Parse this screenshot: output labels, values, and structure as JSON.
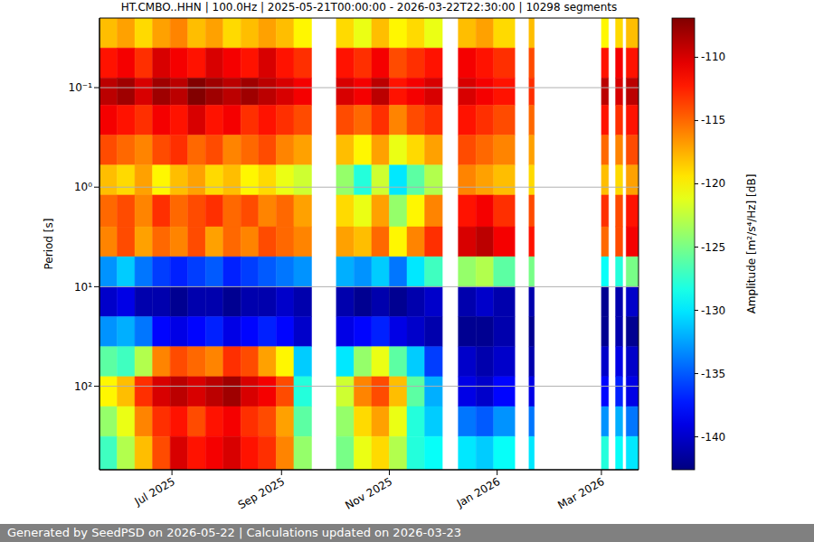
{
  "chart_data": {
    "type": "heatmap",
    "title": "HT.CMBO..HHN | 100.0Hz | 2025-05-21T00:00:00 - 2026-03-22T22:30:00 | 10298 segments",
    "y_label": "Period [s]",
    "log": "y",
    "grid": true,
    "xlim": [
      "2025-05-21",
      "2026-03-22"
    ],
    "xticks": [
      {
        "value": "2025-07-01",
        "label": "Jul 2025"
      },
      {
        "value": "2025-09-01",
        "label": "Sep 2025"
      },
      {
        "value": "2025-11-01",
        "label": "Nov 2025"
      },
      {
        "value": "2026-01-01",
        "label": "Jan 2026"
      },
      {
        "value": "2026-03-01",
        "label": "Mar 2026"
      }
    ],
    "ylim": [
      0.02,
      690
    ],
    "yticks": [
      {
        "value": 0.1,
        "label": "10⁻¹"
      },
      {
        "value": 1,
        "label": "10⁰"
      },
      {
        "value": 10,
        "label": "10¹"
      },
      {
        "value": 100,
        "label": "10²"
      }
    ],
    "x_bins": [
      "2025-05-21",
      "2025-05-31",
      "2025-06-10",
      "2025-06-20",
      "2025-06-30",
      "2025-07-10",
      "2025-07-20",
      "2025-07-30",
      "2025-08-09",
      "2025-08-19",
      "2025-08-29",
      "2025-09-08",
      "2025-09-18",
      "2025-10-02",
      "2025-10-12",
      "2025-10-22",
      "2025-11-01",
      "2025-11-11",
      "2025-11-21",
      "2025-12-01",
      "2025-12-10",
      "2025-12-20",
      "2025-12-30",
      "2026-01-11",
      "2026-01-19",
      "2026-01-22",
      "2026-03-01",
      "2026-03-05",
      "2026-03-09",
      "2026-03-13",
      "2026-03-15",
      "2026-03-22"
    ],
    "y_bins": [
      0.02,
      0.04,
      0.08,
      0.15,
      0.3,
      0.6,
      1.2,
      2.5,
      5,
      10,
      20,
      40,
      80,
      160,
      320,
      690
    ],
    "cells": [
      [
        -118,
        -117,
        -119,
        -117,
        -116,
        -118,
        -117,
        -119,
        -118,
        -117,
        -118,
        -120,
        null,
        -119,
        -121,
        -118,
        -120,
        -119,
        -121,
        null,
        -118,
        -117,
        -119,
        null,
        -118,
        null,
        -120,
        null,
        -119,
        null,
        -118
      ],
      [
        -112,
        -111,
        -113,
        -110,
        -111,
        -112,
        -110,
        -111,
        -112,
        -110,
        -112,
        -113,
        null,
        -112,
        -113,
        -111,
        -114,
        -113,
        -112,
        null,
        -111,
        -112,
        -113,
        null,
        -114,
        null,
        -112,
        null,
        -111,
        null,
        -112
      ],
      [
        -109,
        -108,
        -110,
        -108,
        -109,
        -107,
        -108,
        -109,
        -108,
        -109,
        -110,
        -111,
        null,
        -110,
        -111,
        -109,
        -112,
        -111,
        -110,
        null,
        -110,
        -111,
        -112,
        null,
        -113,
        null,
        -109,
        null,
        -110,
        null,
        -109
      ],
      [
        -111,
        -112,
        -113,
        -111,
        -112,
        -110,
        -112,
        -111,
        -113,
        -112,
        -113,
        -114,
        null,
        -114,
        -115,
        -113,
        -116,
        -114,
        -113,
        null,
        -112,
        -113,
        -114,
        null,
        -115,
        null,
        -112,
        null,
        -113,
        null,
        -112
      ],
      [
        -114,
        -115,
        -116,
        -114,
        -113,
        -115,
        -114,
        -116,
        -115,
        -114,
        -116,
        -117,
        null,
        -118,
        -120,
        -117,
        -121,
        -119,
        -117,
        null,
        -114,
        -115,
        -116,
        null,
        -117,
        null,
        -115,
        null,
        -116,
        null,
        -114
      ],
      [
        -118,
        -119,
        -117,
        -120,
        -118,
        -117,
        -119,
        -118,
        -120,
        -119,
        -121,
        -122,
        null,
        -124,
        -128,
        -122,
        -130,
        -126,
        -123,
        null,
        -116,
        -117,
        -118,
        null,
        -119,
        null,
        -118,
        null,
        -119,
        null,
        -117
      ],
      [
        -115,
        -114,
        -116,
        -113,
        -115,
        -114,
        -113,
        -115,
        -114,
        -116,
        -115,
        -117,
        null,
        -119,
        -121,
        -117,
        -124,
        -120,
        -116,
        null,
        -112,
        -111,
        -113,
        null,
        -114,
        null,
        -113,
        null,
        -114,
        null,
        -112
      ],
      [
        -116,
        -114,
        -117,
        -115,
        -116,
        -114,
        -117,
        -115,
        -116,
        -114,
        -115,
        -116,
        null,
        -117,
        -118,
        -115,
        -120,
        -116,
        -113,
        null,
        -110,
        -109,
        -111,
        null,
        -112,
        null,
        -115,
        null,
        -114,
        null,
        -111
      ],
      [
        -133,
        -131,
        -134,
        -136,
        -137,
        -136,
        -135,
        -137,
        -136,
        -135,
        -134,
        -133,
        null,
        -132,
        -133,
        -131,
        -134,
        -130,
        -127,
        null,
        -124,
        -123,
        -126,
        null,
        -125,
        null,
        -129,
        null,
        -128,
        null,
        -125
      ],
      [
        -140,
        -139,
        -141,
        -141,
        -142,
        -141,
        -141,
        -142,
        -141,
        -141,
        -140,
        -141,
        null,
        -141,
        -142,
        -141,
        -142,
        -141,
        -140,
        null,
        -141,
        -140,
        -141,
        null,
        -141,
        null,
        -142,
        null,
        -141,
        null,
        -140
      ],
      [
        -133,
        -132,
        -134,
        -138,
        -139,
        -138,
        -137,
        -139,
        -138,
        -137,
        -138,
        -140,
        null,
        -139,
        -138,
        -137,
        -139,
        -140,
        -141,
        null,
        -142,
        -142,
        -141,
        null,
        -142,
        null,
        -142,
        null,
        -141,
        null,
        -142
      ],
      [
        -126,
        -127,
        -123,
        -116,
        -114,
        -115,
        -116,
        -113,
        -114,
        -117,
        -120,
        -131,
        null,
        -130,
        -124,
        -121,
        -126,
        -131,
        -136,
        null,
        -140,
        -141,
        -140,
        null,
        -141,
        null,
        -140,
        null,
        -139,
        null,
        -140
      ],
      [
        -120,
        -118,
        -113,
        -110,
        -109,
        -110,
        -109,
        -108,
        -110,
        -111,
        -114,
        -128,
        null,
        -122,
        -116,
        -114,
        -118,
        -126,
        -132,
        null,
        -139,
        -140,
        -138,
        null,
        -139,
        null,
        -138,
        null,
        -137,
        null,
        -139
      ],
      [
        -124,
        -121,
        -116,
        -113,
        -112,
        -114,
        -112,
        -111,
        -113,
        -114,
        -117,
        -126,
        null,
        -124,
        -119,
        -117,
        -121,
        -128,
        -131,
        null,
        -134,
        -135,
        -133,
        null,
        -134,
        null,
        -133,
        null,
        -132,
        null,
        -134
      ],
      [
        -127,
        -123,
        -118,
        -114,
        -110,
        -112,
        -111,
        -110,
        -112,
        -113,
        -116,
        -124,
        null,
        -125,
        -121,
        -119,
        -123,
        -128,
        -129,
        null,
        -130,
        -131,
        -129,
        null,
        -130,
        null,
        -128,
        null,
        -129,
        null,
        -130
      ]
    ],
    "colorbar": {
      "label": "Amplitude [m²/s⁴/Hz] [dB]",
      "range": [
        -142.6,
        -106.9
      ],
      "ticks": [
        -140,
        -135,
        -130,
        -125,
        -120,
        -115,
        -110
      ]
    }
  },
  "footer": "Generated by SeedPSD on 2026-05-22 | Calculations updated on 2026-03-23"
}
